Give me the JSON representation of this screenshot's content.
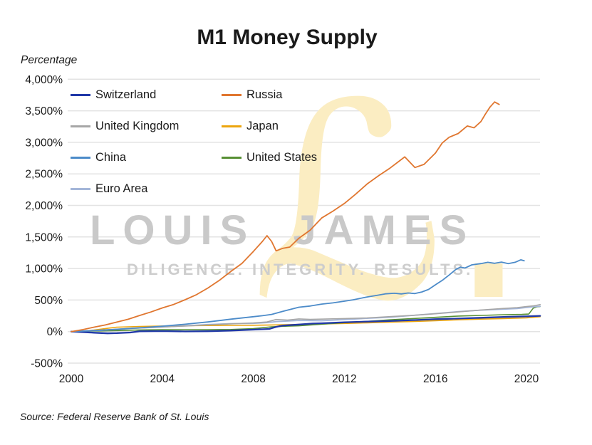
{
  "page": {
    "title": "M1 Money Supply",
    "y_axis_unit": "Percentage",
    "source": "Source: Federal Reserve Bank of St. Louis"
  },
  "watermark": {
    "name": "LOUIS JAMES",
    "tagline": "DILIGENCE. INTEGRITY. RESULTS.",
    "monogram": "ℒ."
  },
  "legend": {
    "items": [
      {
        "label": "Switzerland",
        "color": "#2038a8"
      },
      {
        "label": "Russia",
        "color": "#e0762f"
      },
      {
        "label": "United Kingdom",
        "color": "#a6a6a6"
      },
      {
        "label": "Japan",
        "color": "#eca50d"
      },
      {
        "label": "China",
        "color": "#4c8bc9"
      },
      {
        "label": "United States",
        "color": "#578f33"
      },
      {
        "label": "Euro Area",
        "color": "#a4b6d9"
      }
    ]
  },
  "chart_data": {
    "type": "line",
    "title": "M1 Money Supply",
    "xlabel": "",
    "ylabel": "Percentage",
    "grid": true,
    "legend_position": "top-left",
    "xlim": [
      2000,
      2020.6
    ],
    "ylim": [
      -500,
      4000
    ],
    "y_ticks": [
      {
        "value": 4000,
        "label": "4,000%"
      },
      {
        "value": 3500,
        "label": "3,500%"
      },
      {
        "value": 3000,
        "label": "3,000%"
      },
      {
        "value": 2500,
        "label": "2,500%"
      },
      {
        "value": 2000,
        "label": "2,000%"
      },
      {
        "value": 1500,
        "label": "1,500%"
      },
      {
        "value": 1000,
        "label": "1,000%"
      },
      {
        "value": 500,
        "label": "500%"
      },
      {
        "value": 0,
        "label": "0%"
      },
      {
        "value": -500,
        "label": "-500%"
      }
    ],
    "x_ticks": [
      {
        "value": 2000,
        "label": "2000"
      },
      {
        "value": 2004,
        "label": "2004"
      },
      {
        "value": 2008,
        "label": "2008"
      },
      {
        "value": 2012,
        "label": "2012"
      },
      {
        "value": 2016,
        "label": "2016"
      },
      {
        "value": 2020,
        "label": "2020"
      }
    ],
    "series": [
      {
        "name": "Japan",
        "color": "#eca50d",
        "width": 1.6,
        "points": [
          [
            2000,
            0
          ],
          [
            2000.5,
            8
          ],
          [
            2001,
            24
          ],
          [
            2001.6,
            52
          ],
          [
            2002,
            70
          ],
          [
            2003,
            81
          ],
          [
            2004,
            88
          ],
          [
            2005,
            93
          ],
          [
            2006,
            96
          ],
          [
            2007,
            98
          ],
          [
            2008,
            101
          ],
          [
            2009,
            106
          ],
          [
            2010,
            113
          ],
          [
            2011,
            121
          ],
          [
            2012,
            129
          ],
          [
            2013,
            139
          ],
          [
            2014,
            149
          ],
          [
            2015,
            159
          ],
          [
            2016,
            173
          ],
          [
            2017,
            186
          ],
          [
            2018,
            197
          ],
          [
            2019,
            206
          ],
          [
            2020,
            218
          ],
          [
            2020.6,
            236
          ]
        ]
      },
      {
        "name": "United States",
        "color": "#578f33",
        "width": 1.6,
        "points": [
          [
            2000,
            0
          ],
          [
            2001,
            9
          ],
          [
            2002,
            16
          ],
          [
            2003,
            26
          ],
          [
            2004,
            31
          ],
          [
            2005,
            28
          ],
          [
            2006,
            30
          ],
          [
            2007,
            33
          ],
          [
            2008,
            46
          ],
          [
            2008.8,
            76
          ],
          [
            2009.5,
            86
          ],
          [
            2010,
            91
          ],
          [
            2011,
            117
          ],
          [
            2012,
            141
          ],
          [
            2013,
            161
          ],
          [
            2014,
            186
          ],
          [
            2015,
            206
          ],
          [
            2016,
            226
          ],
          [
            2017,
            246
          ],
          [
            2018,
            256
          ],
          [
            2019,
            268
          ],
          [
            2019.8,
            272
          ],
          [
            2020.1,
            278
          ],
          [
            2020.3,
            372
          ],
          [
            2020.45,
            392
          ],
          [
            2020.6,
            398
          ]
        ]
      },
      {
        "name": "Euro Area",
        "color": "#a4b6d9",
        "width": 1.8,
        "points": [
          [
            2000,
            0
          ],
          [
            2001,
            14
          ],
          [
            2002,
            34
          ],
          [
            2003,
            56
          ],
          [
            2004,
            72
          ],
          [
            2005,
            92
          ],
          [
            2006,
            112
          ],
          [
            2007,
            126
          ],
          [
            2008,
            130
          ],
          [
            2008.6,
            142
          ],
          [
            2009,
            158
          ],
          [
            2010,
            176
          ],
          [
            2011,
            172
          ],
          [
            2012,
            190
          ],
          [
            2013,
            210
          ],
          [
            2014,
            227
          ],
          [
            2015,
            256
          ],
          [
            2016,
            286
          ],
          [
            2017,
            316
          ],
          [
            2018,
            340
          ],
          [
            2019,
            356
          ],
          [
            2019.6,
            366
          ],
          [
            2020,
            382
          ],
          [
            2020.6,
            402
          ]
        ]
      },
      {
        "name": "United Kingdom",
        "color": "#a6a6a6",
        "width": 1.6,
        "points": [
          [
            2000,
            0
          ],
          [
            2001,
            18
          ],
          [
            2002,
            38
          ],
          [
            2003,
            56
          ],
          [
            2004,
            72
          ],
          [
            2005,
            88
          ],
          [
            2006,
            106
          ],
          [
            2007,
            122
          ],
          [
            2008,
            138
          ],
          [
            2008.6,
            152
          ],
          [
            2009,
            192
          ],
          [
            2009.5,
            183
          ],
          [
            2010,
            201
          ],
          [
            2010.5,
            193
          ],
          [
            2011,
            198
          ],
          [
            2012,
            207
          ],
          [
            2013,
            217
          ],
          [
            2014,
            237
          ],
          [
            2015,
            257
          ],
          [
            2016,
            282
          ],
          [
            2017,
            312
          ],
          [
            2018,
            342
          ],
          [
            2019,
            367
          ],
          [
            2019.6,
            380
          ],
          [
            2020,
            396
          ],
          [
            2020.3,
            408
          ],
          [
            2020.6,
            428
          ]
        ]
      },
      {
        "name": "Switzerland",
        "color": "#2038a8",
        "width": 2.3,
        "points": [
          [
            2000,
            0
          ],
          [
            2000.6,
            -10
          ],
          [
            2001,
            -18
          ],
          [
            2001.6,
            -28
          ],
          [
            2002,
            -25
          ],
          [
            2002.6,
            -15
          ],
          [
            2003,
            5
          ],
          [
            2004,
            8
          ],
          [
            2005,
            2
          ],
          [
            2006,
            6
          ],
          [
            2007,
            16
          ],
          [
            2008,
            30
          ],
          [
            2008.7,
            42
          ],
          [
            2009,
            75
          ],
          [
            2009.3,
            95
          ],
          [
            2010,
            112
          ],
          [
            2010.6,
            128
          ],
          [
            2011,
            132
          ],
          [
            2012,
            148
          ],
          [
            2013,
            158
          ],
          [
            2014,
            167
          ],
          [
            2015,
            182
          ],
          [
            2016,
            196
          ],
          [
            2017,
            207
          ],
          [
            2018,
            219
          ],
          [
            2019,
            231
          ],
          [
            2020,
            242
          ],
          [
            2020.6,
            250
          ]
        ]
      },
      {
        "name": "China",
        "color": "#4c8bc9",
        "width": 1.8,
        "points": [
          [
            2000,
            0
          ],
          [
            2001,
            16
          ],
          [
            2002,
            36
          ],
          [
            2003,
            60
          ],
          [
            2004,
            86
          ],
          [
            2005,
            116
          ],
          [
            2006,
            152
          ],
          [
            2007,
            196
          ],
          [
            2008,
            236
          ],
          [
            2008.4,
            252
          ],
          [
            2008.8,
            272
          ],
          [
            2009.3,
            322
          ],
          [
            2010,
            386
          ],
          [
            2010.5,
            405
          ],
          [
            2011,
            436
          ],
          [
            2011.5,
            455
          ],
          [
            2012,
            482
          ],
          [
            2012.4,
            505
          ],
          [
            2013,
            548
          ],
          [
            2013.4,
            572
          ],
          [
            2013.8,
            598
          ],
          [
            2014.2,
            607
          ],
          [
            2014.5,
            597
          ],
          [
            2014.8,
            612
          ],
          [
            2015.1,
            603
          ],
          [
            2015.4,
            628
          ],
          [
            2015.7,
            668
          ],
          [
            2016,
            742
          ],
          [
            2016.3,
            812
          ],
          [
            2016.6,
            896
          ],
          [
            2016.9,
            986
          ],
          [
            2017.1,
            1022
          ],
          [
            2017.3,
            1008
          ],
          [
            2017.6,
            1058
          ],
          [
            2018,
            1078
          ],
          [
            2018.3,
            1098
          ],
          [
            2018.6,
            1082
          ],
          [
            2018.9,
            1102
          ],
          [
            2019.2,
            1078
          ],
          [
            2019.5,
            1098
          ],
          [
            2019.75,
            1138
          ],
          [
            2019.9,
            1122
          ]
        ]
      },
      {
        "name": "Russia",
        "color": "#e0762f",
        "width": 1.8,
        "points": [
          [
            2000,
            0
          ],
          [
            2000.5,
            30
          ],
          [
            2001,
            70
          ],
          [
            2001.5,
            105
          ],
          [
            2002,
            150
          ],
          [
            2002.5,
            195
          ],
          [
            2003,
            255
          ],
          [
            2003.5,
            310
          ],
          [
            2004,
            375
          ],
          [
            2004.5,
            430
          ],
          [
            2005,
            505
          ],
          [
            2005.5,
            585
          ],
          [
            2006,
            690
          ],
          [
            2006.5,
            810
          ],
          [
            2007,
            950
          ],
          [
            2007.5,
            1080
          ],
          [
            2008,
            1270
          ],
          [
            2008.4,
            1430
          ],
          [
            2008.6,
            1520
          ],
          [
            2008.8,
            1430
          ],
          [
            2009,
            1280
          ],
          [
            2009.3,
            1320
          ],
          [
            2009.6,
            1340
          ],
          [
            2010,
            1480
          ],
          [
            2010.5,
            1610
          ],
          [
            2011,
            1800
          ],
          [
            2011.5,
            1910
          ],
          [
            2012,
            2030
          ],
          [
            2012.5,
            2180
          ],
          [
            2013,
            2340
          ],
          [
            2013.5,
            2470
          ],
          [
            2014,
            2590
          ],
          [
            2014.4,
            2700
          ],
          [
            2014.65,
            2770
          ],
          [
            2015.1,
            2600
          ],
          [
            2015.5,
            2650
          ],
          [
            2016,
            2830
          ],
          [
            2016.3,
            2990
          ],
          [
            2016.6,
            3080
          ],
          [
            2017,
            3140
          ],
          [
            2017.4,
            3260
          ],
          [
            2017.7,
            3230
          ],
          [
            2018,
            3330
          ],
          [
            2018.2,
            3450
          ],
          [
            2018.4,
            3560
          ],
          [
            2018.6,
            3640
          ],
          [
            2018.8,
            3600
          ]
        ]
      }
    ]
  }
}
